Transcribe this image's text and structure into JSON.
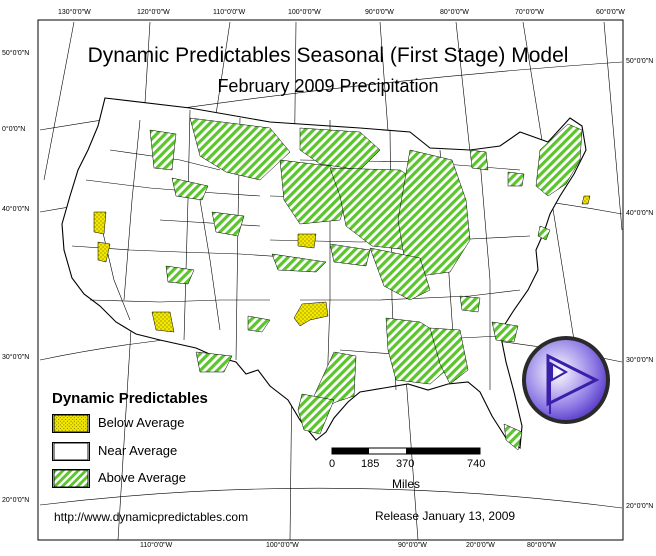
{
  "map": {
    "title": "Dynamic Predictables Seasonal (First Stage) Model",
    "subtitle": "February 2009 Precipitation"
  },
  "graticule": {
    "top_longitudes": [
      "130°0'0\"W",
      "120°0'0\"W",
      "110°0'0\"W",
      "100°0'0\"W",
      "90°0'0\"W",
      "80°0'0\"W",
      "70°0'0\"W",
      "60°0'0\"W"
    ],
    "bottom_longitudes": [
      "110°0'0\"W",
      "100°0'0\"W",
      "90°0'0\"W",
      "20°0'0\"W",
      "80°0'0\"W"
    ],
    "left_latitudes": [
      "50°0'0\"N",
      "0°0'0\"N",
      "40°0'0\"N",
      "30°0'0\"N",
      "20°0'0\"N"
    ],
    "right_latitudes": [
      "50°0'0\"N",
      "40°0'0\"N",
      "30°0'0\"N",
      "20°0'0\"N"
    ]
  },
  "legend": {
    "title": "Dynamic Predictables",
    "items": [
      {
        "label": "Below Average",
        "pattern": "yellow-dots"
      },
      {
        "label": "Near Average",
        "pattern": "white"
      },
      {
        "label": "Above Average",
        "pattern": "green-stripes"
      }
    ]
  },
  "scale_bar": {
    "ticks": [
      "0",
      "185",
      "370",
      "740"
    ],
    "unit": "Miles"
  },
  "footer": {
    "url": "http://www.dynamicpredictables.com",
    "release": "Release January 13, 2009"
  },
  "colors": {
    "below": "#f4e800",
    "above": "#5cc42c",
    "logo_fill": "#5a3cc8",
    "logo_ring": "#2a2a2a"
  },
  "logo": {
    "icon": "play-triangle-logo-icon"
  }
}
